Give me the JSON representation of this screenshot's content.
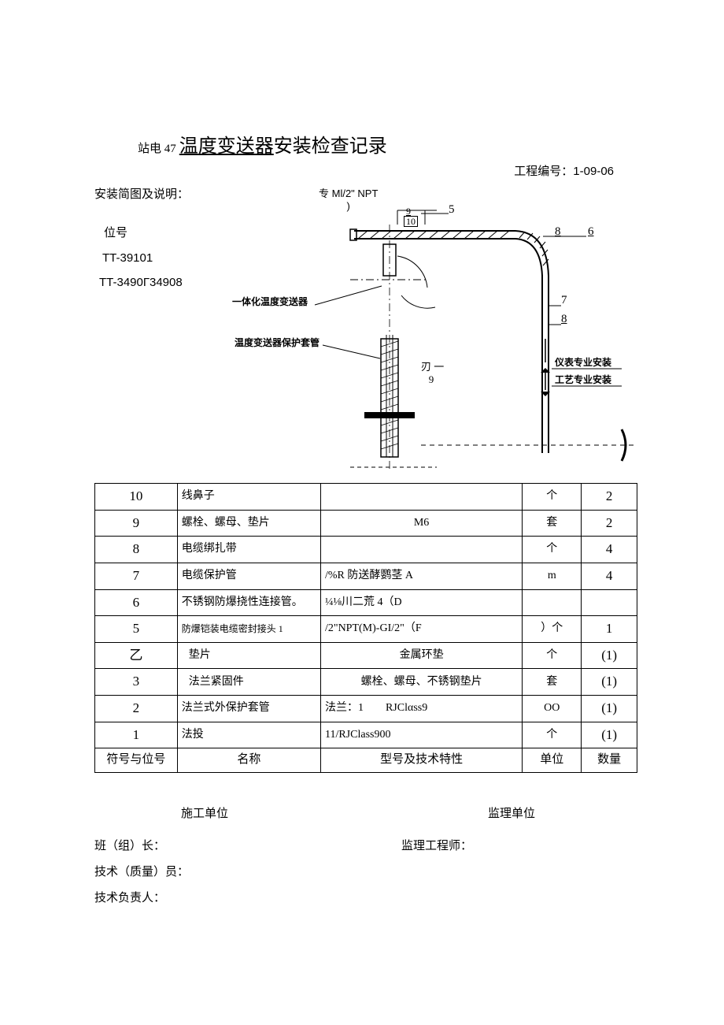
{
  "title": {
    "prefix": "站电 47",
    "underlined": "温度变送器",
    "suffix": "安装检查记录"
  },
  "project_no_label": "工程编号：",
  "project_no": "1-09-06",
  "desc_label": "安装简图及说明：",
  "tags": {
    "label": "位号",
    "t1": "TT-39101",
    "t2": "TT-3490Г34908"
  },
  "diagram": {
    "npt_line1": "专 Ml/2\" NPT",
    "npt_line2": ")",
    "lbl_yiti": "一体化温度变送器",
    "lbl_taoguan": "温度变送器保护套管",
    "lbl_ren9_a": "刃 一",
    "lbl_ren9_b": "9",
    "lbl_yibiao": "仪表专业安装",
    "lbl_gongyi": "工艺专业安装",
    "num5": "5",
    "num6": "6",
    "num7": "7",
    "num8a": "8",
    "num8b": "8",
    "num9": "9",
    "num10": "10",
    "colors": {
      "stroke": "#000000",
      "hatch": "#000000",
      "dash": "#000000"
    }
  },
  "table": {
    "headers": [
      "符号与位号",
      "名称",
      "型号及技术特性",
      "单位",
      "数量"
    ],
    "rows": [
      {
        "no": "10",
        "name": "线鼻子",
        "spec": "",
        "unit": "个",
        "qty": "2"
      },
      {
        "no": "9",
        "name": "螺栓、螺母、垫片",
        "spec": "M6",
        "unit": "套",
        "qty": "2"
      },
      {
        "no": "8",
        "name": "电缆绑扎带",
        "spec": "",
        "unit": "个",
        "qty": "4"
      },
      {
        "no": "7",
        "name": "电缆保护管",
        "spec": "/%R 防送酵鹦茎 A",
        "unit": "m",
        "qty": "4"
      },
      {
        "no": "6",
        "name": "不锈钢防爆挠性连接管。",
        "spec": "¼⅛川二荒 4（D",
        "unit": "",
        "qty": ""
      },
      {
        "no": "5",
        "name": "防爆铠装电缆密封接头 1",
        "spec": "/2\"NPT(M)-GI/2\"（F",
        "unit": "）个",
        "qty": "1"
      },
      {
        "no": "乙",
        "name": "垫片",
        "spec": "金属环垫",
        "unit": "个",
        "qty": "(1)"
      },
      {
        "no": "3",
        "name": "法兰紧固件",
        "spec": "螺栓、螺母、不锈钢垫片",
        "unit": "套",
        "qty": "(1)"
      },
      {
        "no": "2",
        "name": "法兰式外保护套管",
        "spec": "法兰：1　　RJClαss9",
        "unit": "OO",
        "qty": "(1)"
      },
      {
        "no": "1",
        "name": "法投",
        "spec": "11/RJClass900",
        "unit": "个",
        "qty": "(1)"
      }
    ]
  },
  "footer": {
    "construct": "施工单位",
    "supervise": "监理单位",
    "team_leader": "班（组）长：",
    "supervisor_eng": "监理工程师：",
    "tech_quality": "技术（质量）员：",
    "tech_lead": "技术负责人："
  }
}
